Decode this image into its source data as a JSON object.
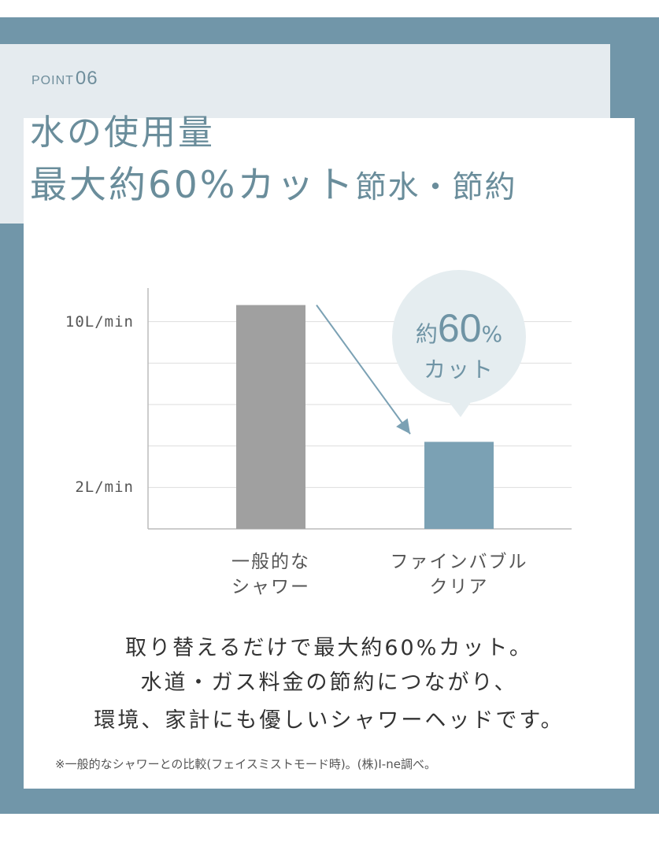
{
  "header": {
    "point_label": "POINT",
    "point_number": "06",
    "title_line1": "水の使用量",
    "title_line2_main": "最大約60%カット",
    "title_line2_sub": "節水・節約"
  },
  "chart_data": {
    "type": "bar",
    "categories": [
      "一般的な\nシャワー",
      "ファインバブル\nクリア"
    ],
    "category_lines": [
      [
        "一般的な",
        "シャワー"
      ],
      [
        "ファインバブル",
        "クリア"
      ]
    ],
    "values": [
      10.8,
      4.2
    ],
    "ylim": [
      0,
      12
    ],
    "yticks": [
      2,
      4,
      6,
      8,
      10
    ],
    "ytick_labels": [
      {
        "value": 10,
        "label": "10L/min"
      },
      {
        "value": 2,
        "label": "2L/min"
      }
    ],
    "bar_colors": [
      "#a0a0a0",
      "#7ba1b4"
    ],
    "grid": true,
    "arrow_color": "#7ba1b4",
    "callout": {
      "prefix": "約",
      "number": "60",
      "unit": "%",
      "line2": "カット"
    }
  },
  "description": {
    "line1": "取り替えるだけで最大約60%カット。",
    "line2": "水道・ガス料金の節約につながり、",
    "line3": "環境、家計にも優しいシャワーヘッドです。"
  },
  "footnote": "※一般的なシャワーとの比較(フェイスミストモード時)。(株)I-ne調べ。",
  "colors": {
    "frame": "#7196a9",
    "title_panel": "#e5ebef",
    "title_text": "#6a8d9b",
    "bubble": "#e5edf0"
  }
}
